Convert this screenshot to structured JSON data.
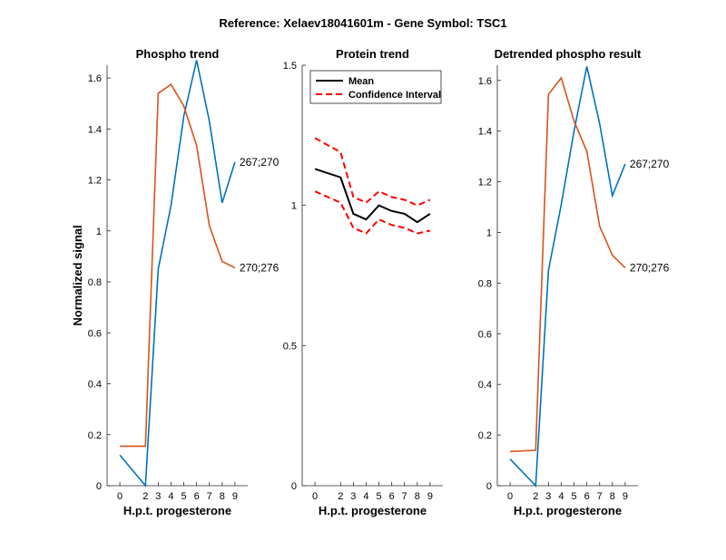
{
  "figure": {
    "suptitle": "Reference:  Xelaev18041601m - Gene Symbol:  TSC1"
  },
  "colors": {
    "blue": "#0072BD",
    "orange": "#D95319",
    "black": "#000000",
    "red": "#FF0000"
  },
  "chart_data": [
    {
      "type": "line",
      "title": "Phospho trend",
      "xlabel": "H.p.t. progesterone",
      "ylabel": "Normalized signal",
      "x": [
        0,
        2,
        3,
        4,
        5,
        6,
        7,
        8,
        9
      ],
      "xticks": [
        0,
        2,
        3,
        4,
        5,
        6,
        7,
        8,
        9
      ],
      "ylim": [
        0,
        1.65
      ],
      "yticks": [
        "0",
        "0.2",
        "0.4",
        "0.6",
        "0.8",
        "1",
        "1.2",
        "1.4",
        "1.6"
      ],
      "series": [
        {
          "name": "267;270",
          "color": "blue",
          "values": [
            0.12,
            0.0,
            0.85,
            1.1,
            1.45,
            1.67,
            1.43,
            1.11,
            1.27
          ]
        },
        {
          "name": "270;276",
          "color": "orange",
          "values": [
            0.155,
            0.155,
            1.54,
            1.575,
            1.49,
            1.335,
            1.02,
            0.88,
            0.855
          ]
        }
      ],
      "annotations": [
        "267;270",
        "270;276"
      ]
    },
    {
      "type": "line",
      "title": "Protein trend",
      "xlabel": "H.p.t. progesterone",
      "x": [
        0,
        2,
        3,
        4,
        5,
        6,
        7,
        8,
        9
      ],
      "xticks": [
        0,
        2,
        3,
        4,
        5,
        6,
        7,
        8,
        9
      ],
      "ylim": [
        0,
        1.5
      ],
      "yticks": [
        "0",
        "0.5",
        "1",
        "1.5"
      ],
      "legend": {
        "placement": "top-left",
        "entries": [
          "Mean",
          "Confidence Interval"
        ]
      },
      "series": [
        {
          "name": "Mean",
          "color": "black",
          "style": "solid",
          "values": [
            1.13,
            1.1,
            0.97,
            0.95,
            1.0,
            0.98,
            0.97,
            0.94,
            0.97
          ]
        },
        {
          "name": "Confidence Interval",
          "color": "red",
          "style": "dashed",
          "values": [
            1.24,
            1.19,
            1.03,
            1.01,
            1.05,
            1.03,
            1.02,
            1.0,
            1.02
          ]
        },
        {
          "name": "Confidence Interval",
          "color": "red",
          "style": "dashed",
          "values": [
            1.05,
            1.01,
            0.92,
            0.9,
            0.95,
            0.93,
            0.92,
            0.9,
            0.91
          ]
        }
      ]
    },
    {
      "type": "line",
      "title": "Detrended phospho result",
      "xlabel": "H.p.t. progesterone",
      "x": [
        0,
        2,
        3,
        4,
        5,
        6,
        7,
        8,
        9
      ],
      "xticks": [
        0,
        2,
        3,
        4,
        5,
        6,
        7,
        8,
        9
      ],
      "ylim": [
        0,
        1.66
      ],
      "yticks": [
        "0",
        "0.2",
        "0.4",
        "0.6",
        "0.8",
        "1",
        "1.2",
        "1.4",
        "1.6"
      ],
      "series": [
        {
          "name": "267;270",
          "color": "blue",
          "values": [
            0.105,
            0.0,
            0.85,
            1.11,
            1.4,
            1.655,
            1.43,
            1.145,
            1.27
          ]
        },
        {
          "name": "270;276",
          "color": "orange",
          "values": [
            0.135,
            0.14,
            1.545,
            1.61,
            1.44,
            1.32,
            1.025,
            0.91,
            0.86
          ]
        }
      ],
      "annotations": [
        "267;270",
        "270;276"
      ]
    }
  ]
}
